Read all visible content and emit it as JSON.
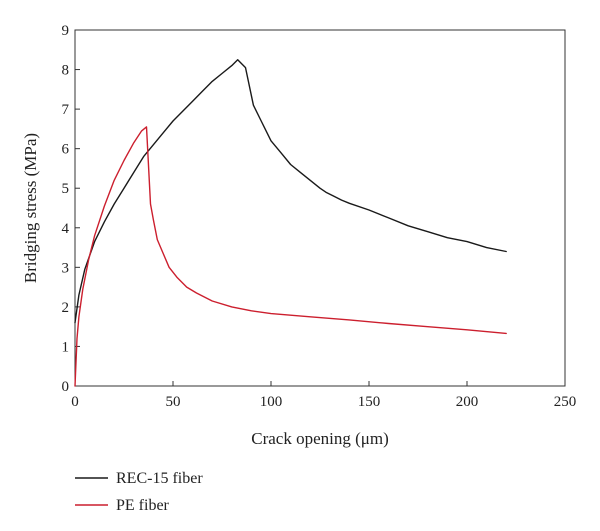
{
  "chart_data": {
    "type": "line",
    "title": "",
    "xlabel": "Crack opening (μm)",
    "ylabel": "Bridging stress (MPa)",
    "xlim": [
      0,
      250
    ],
    "ylim": [
      0,
      9
    ],
    "xticks": [
      0,
      50,
      100,
      150,
      200,
      250
    ],
    "yticks": [
      0,
      1,
      2,
      3,
      4,
      5,
      6,
      7,
      8,
      9
    ],
    "grid": false,
    "legend": "bottom-left, below plot",
    "series": [
      {
        "name": "REC-15 fiber",
        "color": "#1a1a1a",
        "x": [
          0,
          2,
          5,
          10,
          15,
          20,
          25,
          30,
          35,
          40,
          45,
          50,
          55,
          60,
          65,
          70,
          75,
          80,
          83,
          87,
          91,
          95,
          100,
          105,
          110,
          115,
          120,
          125,
          128,
          132,
          136,
          140,
          150,
          160,
          170,
          180,
          190,
          200,
          210,
          220
        ],
        "y": [
          1.6,
          2.3,
          2.95,
          3.65,
          4.15,
          4.6,
          5.0,
          5.4,
          5.8,
          6.1,
          6.4,
          6.7,
          6.95,
          7.2,
          7.45,
          7.7,
          7.9,
          8.1,
          8.25,
          8.05,
          7.1,
          6.7,
          6.2,
          5.9,
          5.6,
          5.4,
          5.2,
          5.0,
          4.9,
          4.8,
          4.7,
          4.62,
          4.45,
          4.25,
          4.05,
          3.9,
          3.75,
          3.65,
          3.5,
          3.4
        ]
      },
      {
        "name": "PE fiber",
        "color": "#cc1f2e",
        "x": [
          0,
          1,
          2,
          4,
          7,
          10,
          15,
          20,
          25,
          30,
          34,
          36.5,
          38.5,
          40,
          42,
          45,
          48,
          52,
          57,
          62,
          70,
          80,
          90,
          100,
          120,
          140,
          160,
          180,
          200,
          220
        ],
        "y": [
          0,
          1.2,
          1.75,
          2.45,
          3.2,
          3.8,
          4.55,
          5.2,
          5.7,
          6.15,
          6.45,
          6.55,
          4.6,
          4.2,
          3.7,
          3.35,
          3.0,
          2.75,
          2.5,
          2.35,
          2.15,
          2.0,
          1.9,
          1.83,
          1.75,
          1.67,
          1.58,
          1.5,
          1.42,
          1.33
        ]
      }
    ]
  }
}
